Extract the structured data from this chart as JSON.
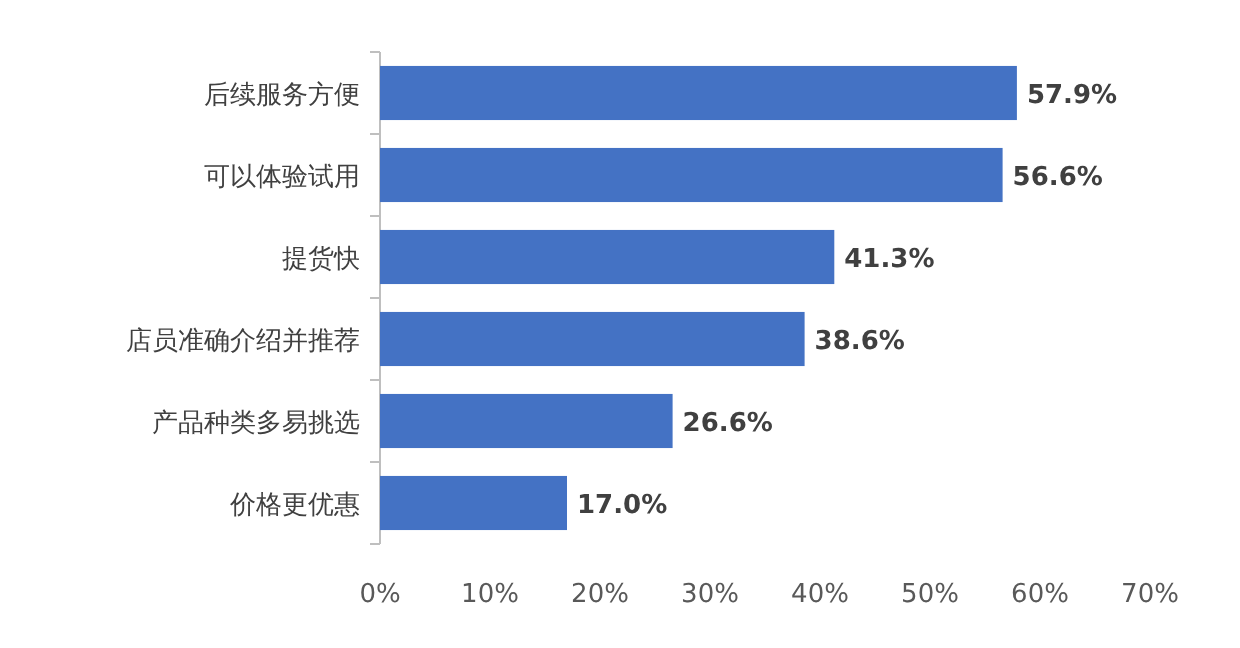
{
  "chart_data": {
    "type": "bar",
    "orientation": "horizontal",
    "categories": [
      "后续服务方便",
      "可以体验试用",
      "提货快",
      "店员准确介绍并推荐",
      "产品种类多易挑选",
      "价格更优惠"
    ],
    "values": [
      57.9,
      56.6,
      41.3,
      38.6,
      26.6,
      17.0
    ],
    "value_labels": [
      "57.9%",
      "56.6%",
      "41.3%",
      "38.6%",
      "26.6%",
      "17.0%"
    ],
    "color": "#4472c4",
    "xlim": [
      0,
      70
    ],
    "xticks": [
      {
        "value": 0,
        "label": "0%"
      },
      {
        "value": 10,
        "label": "10%"
      },
      {
        "value": 20,
        "label": "20%"
      },
      {
        "value": 30,
        "label": "30%"
      },
      {
        "value": 40,
        "label": "40%"
      },
      {
        "value": 50,
        "label": "50%"
      },
      {
        "value": 60,
        "label": "60%"
      },
      {
        "value": 70,
        "label": "70%"
      }
    ]
  }
}
